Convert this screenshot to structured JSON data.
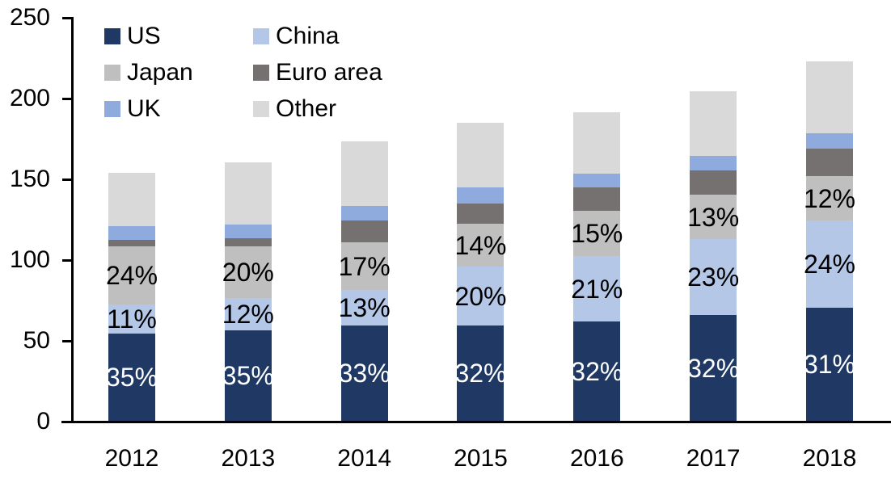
{
  "chart_data": {
    "type": "bar",
    "stacked": true,
    "grid": false,
    "background_color": "#ffffff",
    "axis_color": "#000000",
    "categories": [
      "2012",
      "2013",
      "2014",
      "2015",
      "2016",
      "2017",
      "2018"
    ],
    "series": [
      {
        "name": "US",
        "color": "#1F3864",
        "values": [
          54,
          56,
          59,
          59,
          61.5,
          65.5,
          70
        ],
        "labels": [
          "35%",
          "35%",
          "33%",
          "32%",
          "32%",
          "32%",
          "31%"
        ],
        "label_color": "#ffffff"
      },
      {
        "name": "China",
        "color": "#B4C7E7",
        "values": [
          18,
          20,
          22,
          36.5,
          40.5,
          47,
          54
        ],
        "labels": [
          "11%",
          "12%",
          "13%",
          "20%",
          "21%",
          "23%",
          "24%"
        ],
        "label_color": "#000000"
      },
      {
        "name": "Japan",
        "color": "#BFBFBF",
        "values": [
          36,
          32,
          29.5,
          26.5,
          28,
          27.5,
          27.5
        ],
        "labels": [
          "24%",
          "20%",
          "17%",
          "14%",
          "15%",
          "13%",
          "12%"
        ],
        "label_color": "#000000"
      },
      {
        "name": "Euro area",
        "color": "#767171",
        "values": [
          4,
          5,
          13.5,
          12.5,
          14.5,
          15,
          17
        ],
        "labels": null,
        "label_color": null
      },
      {
        "name": "UK",
        "color": "#8FAADC",
        "values": [
          8.5,
          8.5,
          9,
          10,
          8.5,
          9,
          9.5
        ],
        "labels": null,
        "label_color": null
      },
      {
        "name": "Other",
        "color": "#D9D9D9",
        "values": [
          33,
          38.5,
          40,
          40,
          38,
          40,
          44.5
        ],
        "labels": null,
        "label_color": null
      }
    ],
    "estimated_totals": [
      153.5,
      160,
      173,
      184.5,
      191,
      204,
      222.5
    ],
    "ylim": [
      0,
      250
    ],
    "yticks": [
      "0",
      "50",
      "100",
      "150",
      "200",
      "250"
    ],
    "legend_position": "top-left",
    "legend_order_reading": [
      "US",
      "China",
      "Japan",
      "Euro area",
      "UK",
      "Other"
    ]
  }
}
